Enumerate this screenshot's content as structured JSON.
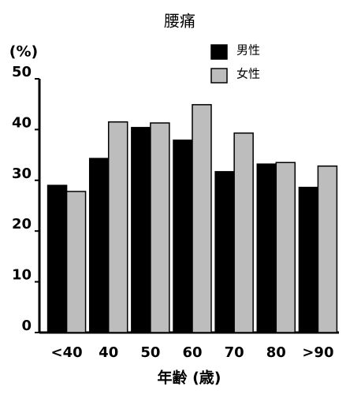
{
  "chart_data": {
    "type": "bar",
    "title": "腰痛",
    "y_label": "(%)",
    "x_label": "年齢 (歳)",
    "categories": [
      "<40",
      "40",
      "50",
      "60",
      "70",
      "80",
      ">90"
    ],
    "series": [
      {
        "name": "男性",
        "color": "#000000",
        "values": [
          29.0,
          34.3,
          40.4,
          37.9,
          31.7,
          33.2,
          28.6
        ]
      },
      {
        "name": "女性",
        "color": "#bdbdbd",
        "values": [
          27.8,
          41.5,
          41.3,
          44.9,
          39.3,
          33.5,
          32.8
        ]
      }
    ],
    "ylim": [
      0,
      50
    ],
    "yticks": [
      0,
      10,
      20,
      30,
      40,
      50
    ]
  }
}
